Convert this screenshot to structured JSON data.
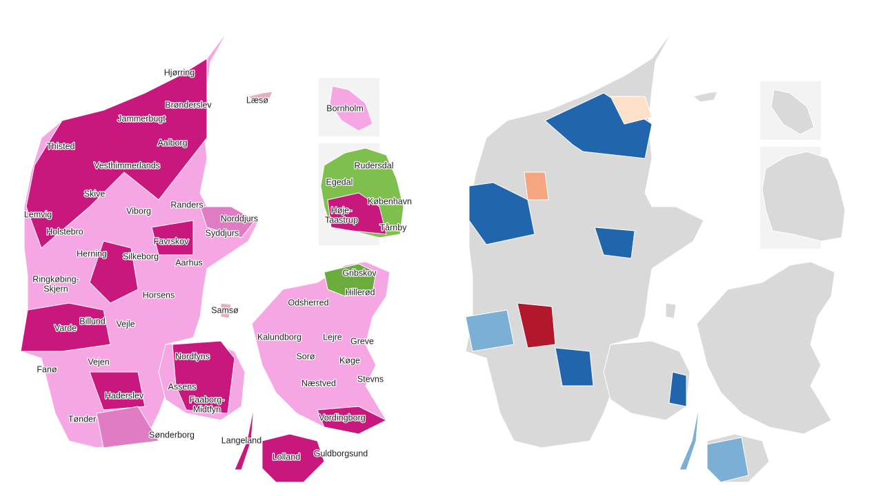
{
  "labels": [
    "Hjørring",
    "Læsø",
    "Brønderslev",
    "Bornholm",
    "Jammerbugt",
    "Thisted",
    "Aalborg",
    "Rudersdal",
    "Vesthimmerlands",
    "Egedal",
    "Skive",
    "København",
    "Randers",
    "Lemvig",
    "Viborg",
    [
      "Høje-",
      "Taastrup"
    ],
    "Norddjurs",
    "Tårnby",
    "Holstebro",
    "Syddjurs",
    "Favrskov",
    "Herning",
    "Silkeborg",
    "Aarhus",
    [
      "Ringkøbing-",
      "Skjern"
    ],
    "Gribskov",
    "Horsens",
    "Hillerød",
    "Odsherred",
    "Samsø",
    "Billund",
    "Varde",
    "Vejle",
    "Kalundborg",
    "Lejre",
    "Greve",
    "Nordfyns",
    "Sorø",
    "Fanø",
    "Vejen",
    "Køge",
    "Assens",
    "Stevns",
    "Næstved",
    "Haderslev",
    [
      "Faaborg-",
      "Midtfyn"
    ],
    "Tønder",
    "Vordingborg",
    "Sønderborg",
    "Langeland",
    "Lolland",
    "Guldborgsund"
  ]
}
